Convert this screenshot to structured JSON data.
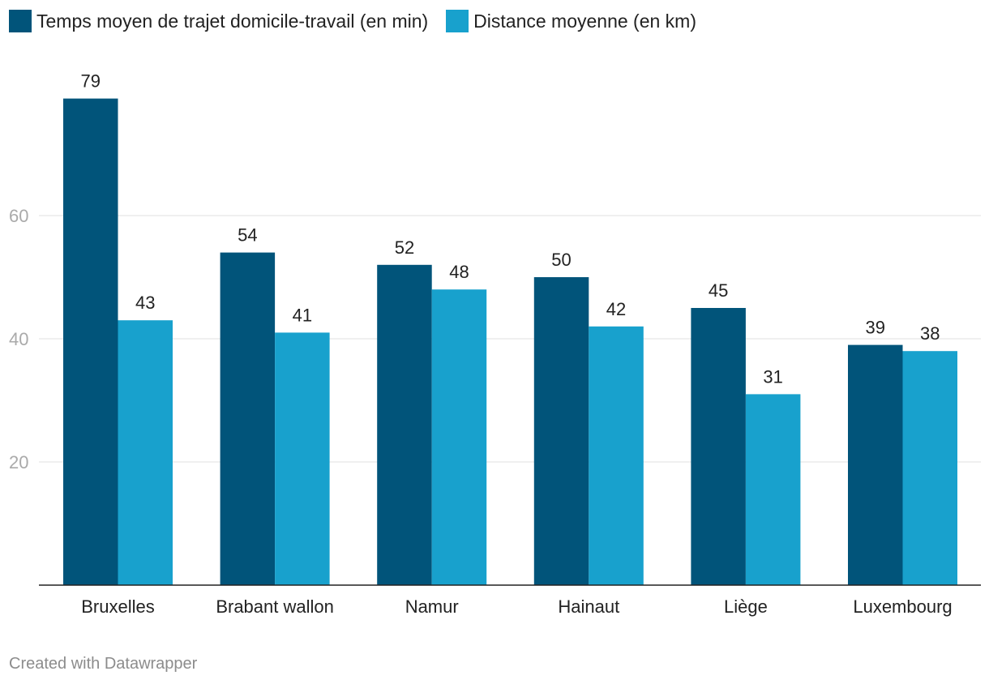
{
  "legend": {
    "series1_label": "Temps moyen de trajet domicile-travail (en min)",
    "series2_label": "Distance moyenne (en km)"
  },
  "footer": {
    "credit": "Created with Datawrapper"
  },
  "colors": {
    "series1": "#01547a",
    "series2": "#18a1cd",
    "grid": "#e0e0e0",
    "axis": "#222222",
    "tick_label": "#aaaaaa"
  },
  "chart_data": {
    "type": "bar",
    "categories": [
      "Bruxelles",
      "Brabant wallon",
      "Namur",
      "Hainaut",
      "Liège",
      "Luxembourg"
    ],
    "series": [
      {
        "name": "Temps moyen de trajet domicile-travail (en min)",
        "values": [
          79,
          54,
          52,
          50,
          45,
          39
        ]
      },
      {
        "name": "Distance moyenne (en km)",
        "values": [
          43,
          41,
          48,
          42,
          31,
          38
        ]
      }
    ],
    "yticks": [
      20,
      40,
      60
    ],
    "ylim": [
      0,
      84
    ],
    "grid": true,
    "legend_position": "top-left",
    "data_labels": true
  }
}
